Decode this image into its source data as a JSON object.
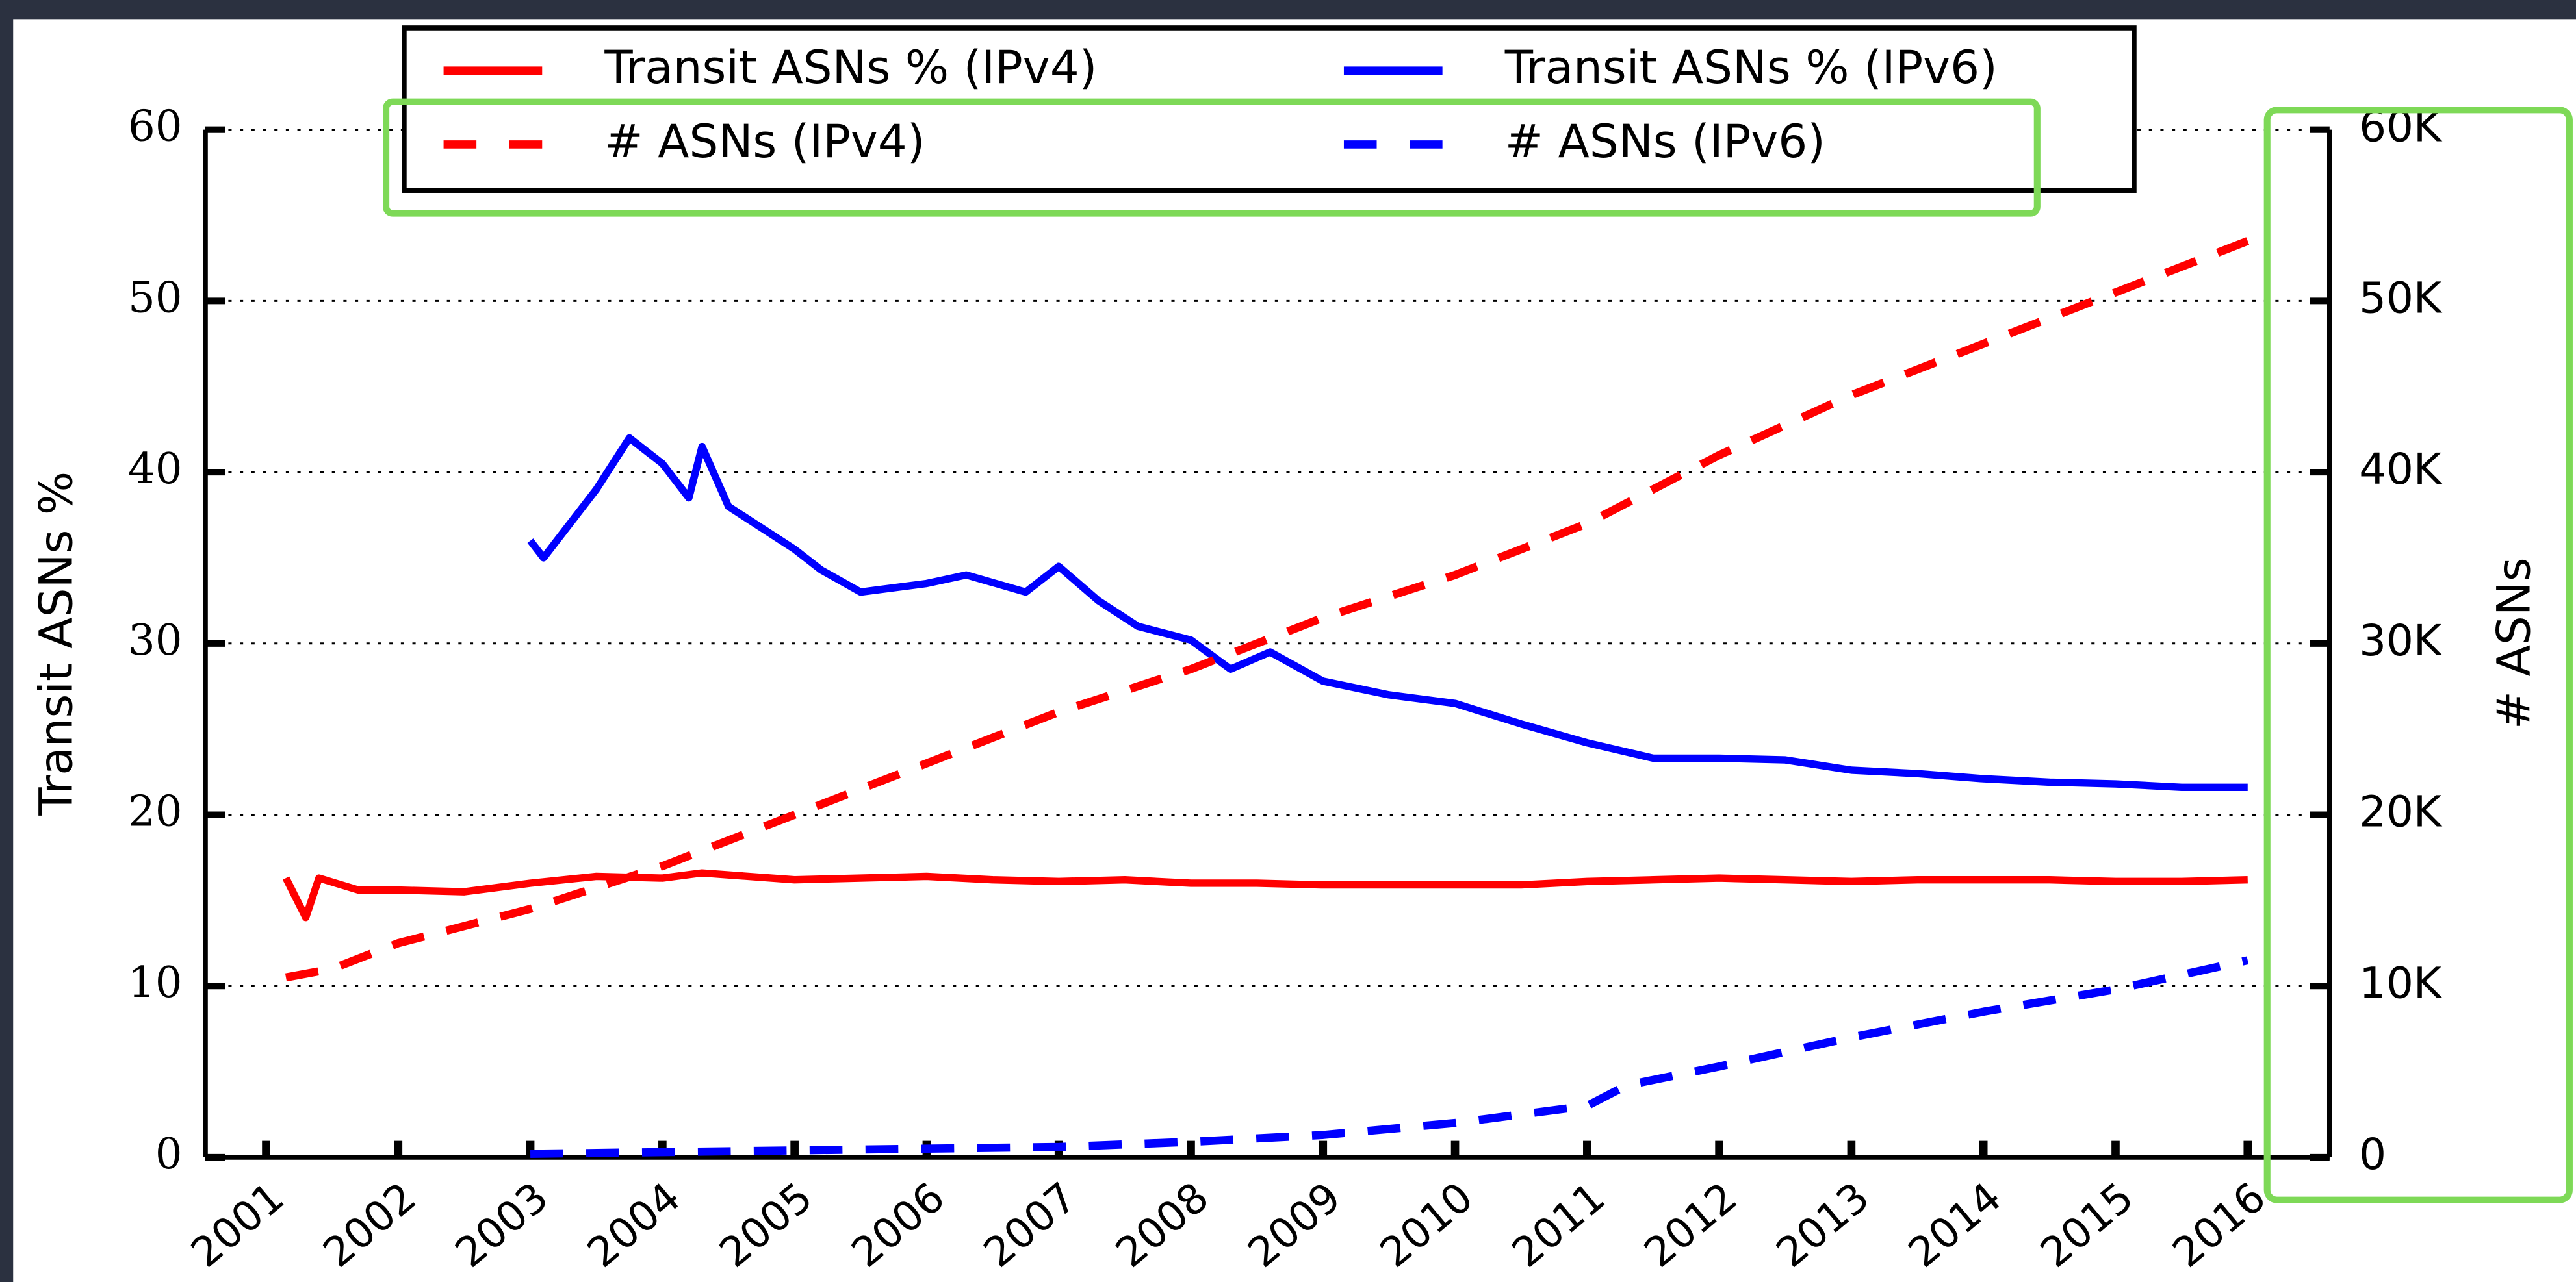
{
  "chart_data": {
    "type": "line",
    "ylabel": "Transit ASNs %",
    "y2label": "# ASNs",
    "xlim": [
      2000.54,
      2016.62
    ],
    "xticks": [
      2001,
      2002,
      2003,
      2004,
      2005,
      2006,
      2007,
      2008,
      2009,
      2010,
      2011,
      2012,
      2013,
      2014,
      2015,
      2016
    ],
    "ylim": [
      0,
      60
    ],
    "yticks": [
      0,
      10,
      20,
      30,
      40,
      50,
      60
    ],
    "y2lim": [
      0,
      60000
    ],
    "y2ticks": [
      0,
      {
        "value": 10000,
        "label": "10K"
      },
      {
        "value": 20000,
        "label": "20K"
      },
      {
        "value": 30000,
        "label": "30K"
      },
      {
        "value": 40000,
        "label": "40K"
      },
      {
        "value": 50000,
        "label": "50K"
      },
      {
        "value": 60000,
        "label": "60K"
      }
    ],
    "grid": true,
    "legend": "top",
    "series": [
      {
        "name": "Transit ASNs % (IPv4)",
        "color": "#ff0000",
        "linestyle": "solid",
        "x": [
          2001.15,
          2001.3,
          2001.4,
          2001.7,
          2002,
          2002.5,
          2003,
          2003.5,
          2004,
          2004.3,
          2005,
          2005.5,
          2006,
          2006.5,
          2007,
          2007.5,
          2008,
          2008.5,
          2009,
          2009.5,
          2010,
          2010.5,
          2011,
          2011.5,
          2012,
          2012.5,
          2013,
          2013.5,
          2014,
          2014.5,
          2015,
          2015.5,
          2016
        ],
        "values": [
          16.3,
          14,
          16.3,
          15.6,
          15.6,
          15.5,
          16,
          16.4,
          16.3,
          16.6,
          16.2,
          16.3,
          16.4,
          16.2,
          16.1,
          16.2,
          16,
          16,
          15.9,
          15.9,
          15.9,
          15.9,
          16.1,
          16.2,
          16.3,
          16.2,
          16.1,
          16.2,
          16.2,
          16.2,
          16.1,
          16.1,
          16.2
        ]
      },
      {
        "name": "Transit ASNs % (IPv6)",
        "color": "#0000ff",
        "linestyle": "solid",
        "x": [
          2003,
          2003.1,
          2003.25,
          2003.5,
          2003.75,
          2004,
          2004.2,
          2004.3,
          2004.5,
          2005,
          2005.2,
          2005.5,
          2006,
          2006.3,
          2006.75,
          2007,
          2007.3,
          2007.6,
          2008,
          2008.3,
          2008.6,
          2009,
          2009.5,
          2010,
          2010.5,
          2011,
          2011.5,
          2012,
          2012.5,
          2013,
          2013.5,
          2014,
          2014.5,
          2015,
          2015.5,
          2016
        ],
        "values": [
          36,
          35,
          36.5,
          39,
          42,
          40.5,
          38.5,
          41.5,
          38,
          35.5,
          34.3,
          33,
          33.5,
          34,
          33,
          34.5,
          32.5,
          31,
          30.2,
          28.5,
          29.5,
          27.8,
          27,
          26.5,
          25.3,
          24.2,
          23.3,
          23.3,
          23.2,
          22.6,
          22.4,
          22.1,
          21.9,
          21.8,
          21.6,
          21.6
        ]
      },
      {
        "name": "# ASNs (IPv4)",
        "color": "#ff0000",
        "linestyle": "dashed",
        "axis": "y2",
        "x": [
          2001.15,
          2001.5,
          2002,
          2003,
          2004,
          2005,
          2006,
          2007,
          2008,
          2009,
          2010,
          2011,
          2012,
          2013,
          2014,
          2015,
          2016
        ],
        "values": [
          10500,
          11000,
          12500,
          14500,
          17000,
          20000,
          23000,
          26000,
          28500,
          31500,
          34000,
          37000,
          41000,
          44500,
          47500,
          50500,
          53500
        ]
      },
      {
        "name": "# ASNs (IPv6)",
        "color": "#0000ff",
        "linestyle": "dashed",
        "axis": "y2",
        "x": [
          2003,
          2004,
          2005,
          2006,
          2007,
          2008,
          2009,
          2010,
          2011,
          2011.3,
          2012,
          2013,
          2014,
          2015,
          2016
        ],
        "values": [
          200,
          300,
          400,
          500,
          600,
          900,
          1300,
          2000,
          3000,
          4200,
          5300,
          7000,
          8500,
          9800,
          11500
        ]
      }
    ]
  }
}
